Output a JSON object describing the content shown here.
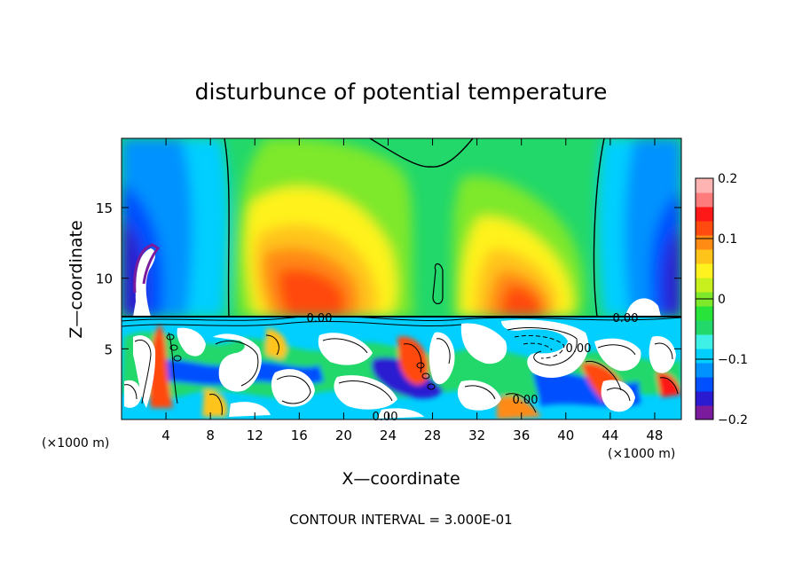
{
  "chart_data": {
    "type": "heatmap",
    "title": "disturbunce of potential temperature",
    "xlabel": "X—coordinate",
    "ylabel": "Z—coordinate",
    "x_unit_left": "(×1000 m)",
    "x_unit_right": "(×1000 m)",
    "footer": "CONTOUR INTERVAL = 3.000E-01",
    "xlim": [
      0,
      50.4
    ],
    "ylim": [
      0,
      19.9
    ],
    "xticks": [
      4,
      8,
      12,
      16,
      20,
      24,
      28,
      32,
      36,
      40,
      44,
      48
    ],
    "yticks": [
      5,
      10,
      15
    ],
    "colorbar": {
      "range": [
        -0.2,
        0.2
      ],
      "ticks": [
        0.2,
        0.1,
        0,
        -0.1,
        -0.2
      ],
      "tick_labels": [
        "0.2",
        "0.1",
        "0",
        "−0.1",
        "−0.2"
      ],
      "colors": [
        "#7a1a9c",
        "#2a1ad0",
        "#0050ff",
        "#0092ff",
        "#00cfff",
        "#3ff0e6",
        "#22d86a",
        "#28e43a",
        "#7ee82a",
        "#c8f01e",
        "#fff21e",
        "#ffc41a",
        "#ff8a14",
        "#ff4a10",
        "#ff1818",
        "#ff7c7c",
        "#ffb4b4"
      ]
    },
    "contour_labels": [
      "0.00",
      "0.00",
      "0.00",
      "0.00",
      "0.00"
    ]
  }
}
